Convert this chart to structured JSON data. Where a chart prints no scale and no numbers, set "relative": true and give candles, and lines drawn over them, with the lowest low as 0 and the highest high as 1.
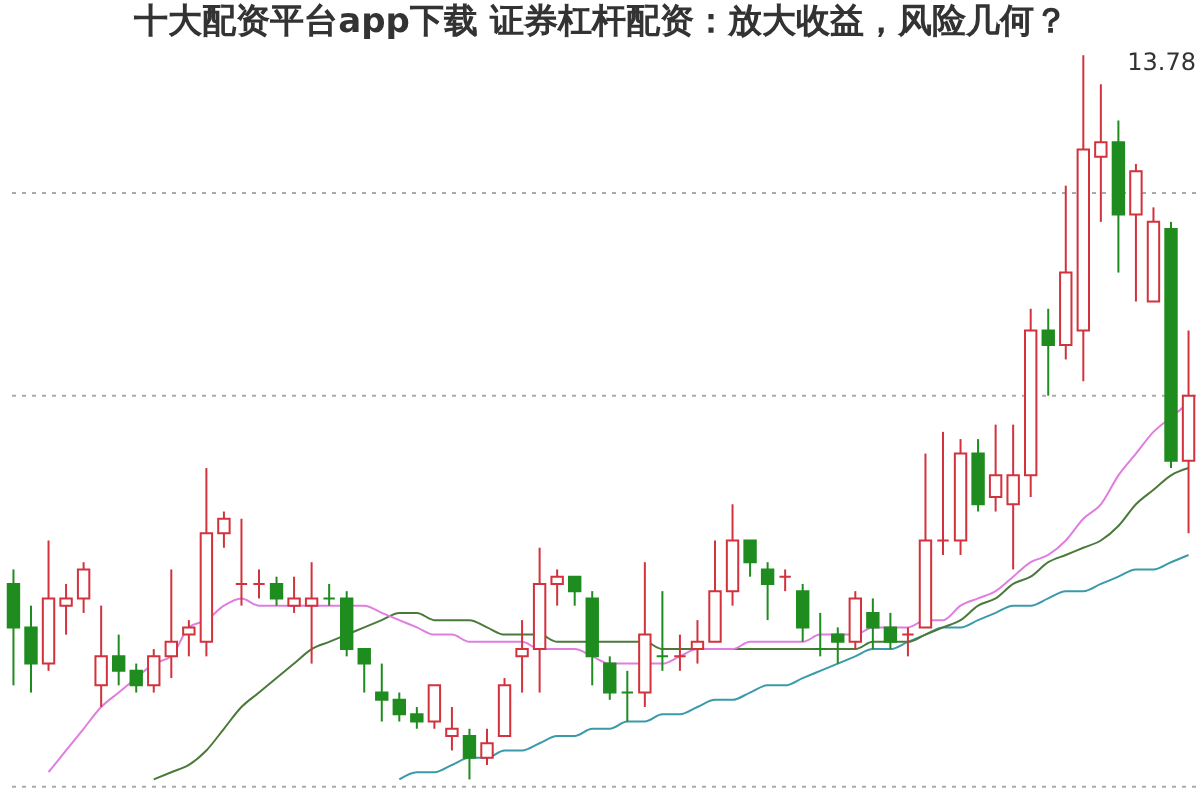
{
  "chart_data": {
    "type": "candlestick",
    "title": "十大配资平台app下载 证券杠杆配资：放大收益，风险几何？",
    "relative": true,
    "categories": [
      null,
      null,
      null,
      null,
      null,
      null,
      null,
      null,
      null,
      null,
      null,
      null,
      null,
      null,
      null,
      null,
      null,
      null,
      null,
      null,
      null,
      null,
      null,
      null,
      null,
      null,
      null,
      null,
      null,
      null,
      null,
      null,
      null,
      null,
      null,
      null,
      null,
      null,
      null,
      null,
      null,
      null,
      null,
      null,
      null,
      null,
      null,
      null,
      null,
      null,
      null,
      null,
      null,
      null,
      null,
      null,
      null,
      null,
      null,
      null,
      null,
      null,
      null,
      null,
      null,
      null,
      null,
      null
    ],
    "ohlc": [
      [
        0.27,
        0.29,
        0.13,
        0.21
      ],
      [
        0.21,
        0.24,
        0.12,
        0.16
      ],
      [
        0.16,
        0.33,
        0.15,
        0.25
      ],
      [
        0.24,
        0.27,
        0.2,
        0.25
      ],
      [
        0.25,
        0.3,
        0.23,
        0.29
      ],
      [
        0.13,
        0.24,
        0.1,
        0.17
      ],
      [
        0.17,
        0.2,
        0.13,
        0.15
      ],
      [
        0.15,
        0.16,
        0.12,
        0.13
      ],
      [
        0.13,
        0.18,
        0.12,
        0.17
      ],
      [
        0.17,
        0.29,
        0.14,
        0.19
      ],
      [
        0.2,
        0.22,
        0.17,
        0.21
      ],
      [
        0.19,
        0.43,
        0.17,
        0.34
      ],
      [
        0.34,
        0.37,
        0.32,
        0.36
      ],
      [
        0.27,
        0.36,
        0.24,
        0.27
      ],
      [
        0.27,
        0.29,
        0.25,
        0.27
      ],
      [
        0.27,
        0.28,
        0.24,
        0.25
      ],
      [
        0.24,
        0.28,
        0.23,
        0.25
      ],
      [
        0.24,
        0.3,
        0.16,
        0.25
      ],
      [
        0.25,
        0.27,
        0.24,
        0.25
      ],
      [
        0.25,
        0.26,
        0.17,
        0.18
      ],
      [
        0.18,
        0.18,
        0.12,
        0.16
      ],
      [
        0.12,
        0.16,
        0.08,
        0.11
      ],
      [
        0.11,
        0.12,
        0.08,
        0.09
      ],
      [
        0.09,
        0.1,
        0.07,
        0.08
      ],
      [
        0.08,
        0.13,
        0.07,
        0.13
      ],
      [
        0.06,
        0.1,
        0.04,
        0.07
      ],
      [
        0.06,
        0.07,
        0,
        0.03
      ],
      [
        0.03,
        0.07,
        0.02,
        0.05
      ],
      [
        0.06,
        0.14,
        0.06,
        0.13
      ],
      [
        0.17,
        0.22,
        0.12,
        0.18
      ],
      [
        0.18,
        0.32,
        0.12,
        0.27
      ],
      [
        0.27,
        0.29,
        0.24,
        0.28
      ],
      [
        0.28,
        0.28,
        0.24,
        0.26
      ],
      [
        0.25,
        0.26,
        0.13,
        0.17
      ],
      [
        0.16,
        0.17,
        0.11,
        0.12
      ],
      [
        0.12,
        0.15,
        0.08,
        0.12
      ],
      [
        0.12,
        0.3,
        0.1,
        0.2
      ],
      [
        0.17,
        0.26,
        0.15,
        0.17
      ],
      [
        0.17,
        0.2,
        0.15,
        0.17
      ],
      [
        0.18,
        0.22,
        0.16,
        0.19
      ],
      [
        0.19,
        0.33,
        0.19,
        0.26
      ],
      [
        0.26,
        0.38,
        0.24,
        0.33
      ],
      [
        0.33,
        0.33,
        0.28,
        0.3
      ],
      [
        0.29,
        0.3,
        0.22,
        0.27
      ],
      [
        0.28,
        0.29,
        0.26,
        0.28
      ],
      [
        0.26,
        0.27,
        0.19,
        0.21
      ],
      [
        0.18,
        0.23,
        0.17,
        0.18
      ],
      [
        0.2,
        0.21,
        0.16,
        0.19
      ],
      [
        0.19,
        0.26,
        0.18,
        0.25
      ],
      [
        0.23,
        0.25,
        0.18,
        0.21
      ],
      [
        0.21,
        0.23,
        0.18,
        0.19
      ],
      [
        0.2,
        0.21,
        0.17,
        0.2
      ],
      [
        0.21,
        0.45,
        0.21,
        0.33
      ],
      [
        0.33,
        0.48,
        0.31,
        0.33
      ],
      [
        0.33,
        0.47,
        0.31,
        0.45
      ],
      [
        0.45,
        0.47,
        0.37,
        0.38
      ],
      [
        0.39,
        0.49,
        0.37,
        0.42
      ],
      [
        0.38,
        0.49,
        0.29,
        0.42
      ],
      [
        0.42,
        0.65,
        0.39,
        0.62
      ],
      [
        0.62,
        0.65,
        0.53,
        0.6
      ],
      [
        0.6,
        0.82,
        0.58,
        0.7
      ],
      [
        0.62,
        1,
        0.55,
        0.87
      ],
      [
        0.86,
        0.96,
        0.77,
        0.88
      ],
      [
        0.88,
        0.91,
        0.7,
        0.78
      ],
      [
        0.78,
        0.85,
        0.66,
        0.84
      ],
      [
        0.66,
        0.79,
        0.66,
        0.77
      ],
      [
        0.76,
        0.77,
        0.43,
        0.44
      ],
      [
        0.44,
        0.62,
        0.34,
        0.53
      ]
    ],
    "colors": [
      "#1e8c1e",
      "#1e8c1e",
      "#d2323c",
      "#d2323c",
      "#d2323c",
      "#d2323c",
      "#1e8c1e",
      "#1e8c1e",
      "#d2323c",
      "#d2323c",
      "#d2323c",
      "#d2323c",
      "#d2323c",
      "#d2323c",
      "#d2323c",
      "#1e8c1e",
      "#d2323c",
      "#d2323c",
      "#1e8c1e",
      "#1e8c1e",
      "#1e8c1e",
      "#1e8c1e",
      "#1e8c1e",
      "#1e8c1e",
      "#d2323c",
      "#d2323c",
      "#1e8c1e",
      "#d2323c",
      "#d2323c",
      "#d2323c",
      "#d2323c",
      "#d2323c",
      "#1e8c1e",
      "#1e8c1e",
      "#1e8c1e",
      "#1e8c1e",
      "#d2323c",
      "#1e8c1e",
      "#d2323c",
      "#d2323c",
      "#d2323c",
      "#d2323c",
      "#1e8c1e",
      "#1e8c1e",
      "#d2323c",
      "#1e8c1e",
      "#1e8c1e",
      "#1e8c1e",
      "#d2323c",
      "#1e8c1e",
      "#1e8c1e",
      "#d2323c",
      "#d2323c",
      "#d2323c",
      "#d2323c",
      "#1e8c1e",
      "#d2323c",
      "#d2323c",
      "#d2323c",
      "#1e8c1e",
      "#d2323c",
      "#d2323c",
      "#d2323c",
      "#1e8c1e",
      "#d2323c",
      "#d2323c",
      "#1e8c1e",
      "#d2323c"
    ],
    "series": [
      {
        "type": "line",
        "color": "#3a9aaa",
        "values": [
          null,
          null,
          null,
          null,
          null,
          null,
          null,
          null,
          null,
          null,
          null,
          null,
          null,
          null,
          null,
          null,
          null,
          null,
          null,
          null,
          null,
          null,
          0,
          0.01,
          0.01,
          0.02,
          0.03,
          0.03,
          0.04,
          0.04,
          0.05,
          0.06,
          0.06,
          0.07,
          0.07,
          0.08,
          0.08,
          0.09,
          0.09,
          0.1,
          0.11,
          0.11,
          0.12,
          0.13,
          0.13,
          0.14,
          0.15,
          0.16,
          0.17,
          0.18,
          0.18,
          0.19,
          0.2,
          0.21,
          0.21,
          0.22,
          0.23,
          0.24,
          0.24,
          0.25,
          0.26,
          0.26,
          0.27,
          0.28,
          0.29,
          0.29,
          0.3,
          0.31
        ]
      },
      {
        "type": "line",
        "color": "#4a7a3a",
        "values": [
          null,
          null,
          null,
          null,
          null,
          null,
          null,
          null,
          0,
          0.01,
          0.02,
          0.04,
          0.07,
          0.1,
          0.12,
          0.14,
          0.16,
          0.18,
          0.19,
          0.2,
          0.21,
          0.22,
          0.23,
          0.23,
          0.22,
          0.22,
          0.22,
          0.21,
          0.2,
          0.2,
          0.2,
          0.19,
          0.19,
          0.19,
          0.19,
          0.19,
          0.19,
          0.18,
          0.18,
          0.18,
          0.18,
          0.18,
          0.18,
          0.18,
          0.18,
          0.18,
          0.18,
          0.18,
          0.18,
          0.19,
          0.19,
          0.19,
          0.2,
          0.21,
          0.22,
          0.24,
          0.25,
          0.27,
          0.28,
          0.3,
          0.31,
          0.32,
          0.33,
          0.35,
          0.38,
          0.4,
          0.42,
          0.43
        ]
      },
      {
        "type": "line",
        "color": "#e07ee0",
        "values": [
          null,
          null,
          0.01,
          0.04,
          0.07,
          0.1,
          0.12,
          0.14,
          0.16,
          0.17,
          0.21,
          0.22,
          0.24,
          0.25,
          0.24,
          0.24,
          0.24,
          0.24,
          0.24,
          0.24,
          0.24,
          0.23,
          0.22,
          0.21,
          0.2,
          0.2,
          0.19,
          0.19,
          0.19,
          0.19,
          0.18,
          0.18,
          0.18,
          0.17,
          0.16,
          0.16,
          0.16,
          0.16,
          0.17,
          0.18,
          0.18,
          0.18,
          0.19,
          0.19,
          0.19,
          0.19,
          0.2,
          0.2,
          0.2,
          0.21,
          0.21,
          0.21,
          0.22,
          0.22,
          0.24,
          0.25,
          0.26,
          0.28,
          0.3,
          0.31,
          0.33,
          0.36,
          0.38,
          0.42,
          0.45,
          0.48,
          0.5,
          0.52
        ]
      }
    ],
    "ref_lines": [
      {
        "axis": "y",
        "value": 0.81,
        "color": "#aaaaaa",
        "line_style": "dotted"
      },
      {
        "axis": "y",
        "value": 0.53,
        "color": "#aaaaaa",
        "line_style": "dotted"
      },
      {
        "axis": "y",
        "value": -0.01,
        "color": "#aaaaaa",
        "line_style": "dotted"
      }
    ],
    "annotations": [
      "13.78"
    ]
  }
}
